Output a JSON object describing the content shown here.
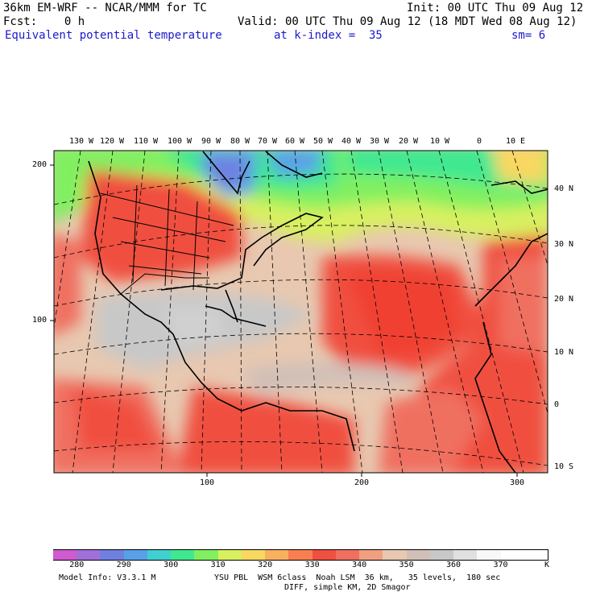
{
  "header": {
    "model_line": "36km EM-WRF -- NCAR/MMM for TC",
    "init_line": "Init: 00 UTC Thu 09 Aug 12",
    "fcst_line": "Fcst:    0 h",
    "valid_line": "Valid: 00 UTC Thu 09 Aug 12 (18 MDT Wed 08 Aug 12)",
    "field_title": "Equivalent potential temperature",
    "level_text": "at k-index =  35",
    "smooth_text": "sm= 6"
  },
  "map": {
    "lon_labels": [
      "130 W",
      "120 W",
      "110 W",
      "100 W",
      "90 W",
      "80 W",
      "70 W",
      "60 W",
      "50 W",
      "40 W",
      "30 W",
      "20 W",
      "10 W",
      "0",
      "10 E"
    ],
    "lat_labels": [
      "40 N",
      "30 N",
      "20 N",
      "10 N",
      "0",
      "10 S"
    ],
    "y_axis_labels": [
      "200",
      "100"
    ],
    "x_axis_labels": [
      "100",
      "200",
      "300"
    ]
  },
  "legend": {
    "colors": [
      "#d05ad0",
      "#a070d8",
      "#7080e0",
      "#5aa0e8",
      "#40d0d0",
      "#40e890",
      "#80f060",
      "#d8f060",
      "#f8d860",
      "#f8b060",
      "#f88050",
      "#f05040",
      "#f07060",
      "#f0a080",
      "#e8c8b0",
      "#d0c0b8",
      "#c8c8c8",
      "#e0e0e0",
      "#f8f8f8",
      "#ffffff",
      "#ffffff"
    ],
    "ticks": [
      "280",
      "290",
      "300",
      "310",
      "320",
      "330",
      "340",
      "350",
      "360",
      "370"
    ],
    "unit": "K"
  },
  "footer": {
    "model_info": "Model Info: V3.3.1 M",
    "physics": "YSU PBL  WSM 6class  Noah LSM  36 km,   35 levels,  180 sec",
    "diff": "DIFF, simple KM, 2D Smagor"
  }
}
